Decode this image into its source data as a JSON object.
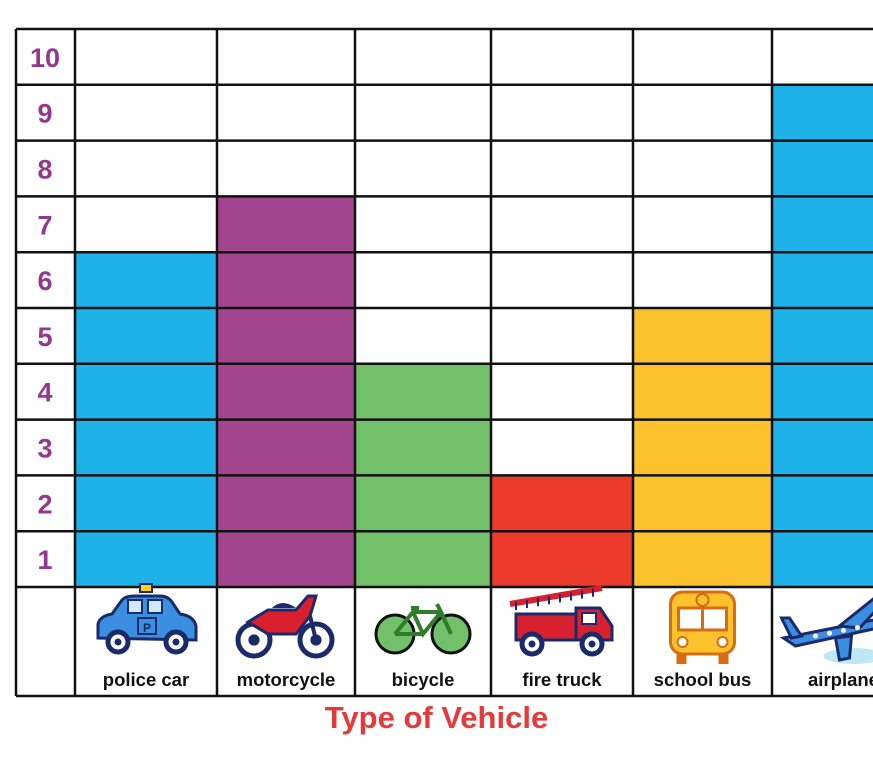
{
  "chart_data": {
    "type": "bar",
    "categories": [
      "police car",
      "motorcycle",
      "bicycle",
      "fire truck",
      "school bus",
      "airplane"
    ],
    "values": [
      6,
      7,
      4,
      2,
      5,
      9
    ],
    "colors": [
      "#1fb2e8",
      "#a3448f",
      "#73c06b",
      "#ec3b2a",
      "#fbc22d",
      "#1fb2e8"
    ],
    "icons": [
      "police-car-icon",
      "motorcycle-icon",
      "bicycle-icon",
      "fire-truck-icon",
      "school-bus-icon",
      "airplane-icon"
    ],
    "y_ticks": [
      "1",
      "2",
      "3",
      "4",
      "5",
      "6",
      "7",
      "8",
      "9",
      "10"
    ],
    "ylim": [
      0,
      10
    ],
    "xlabel": "Type of Vehicle",
    "ylabel": "",
    "title": "",
    "grid": true,
    "tick_color": "#94388f",
    "xlabel_color": "#e5393a"
  }
}
